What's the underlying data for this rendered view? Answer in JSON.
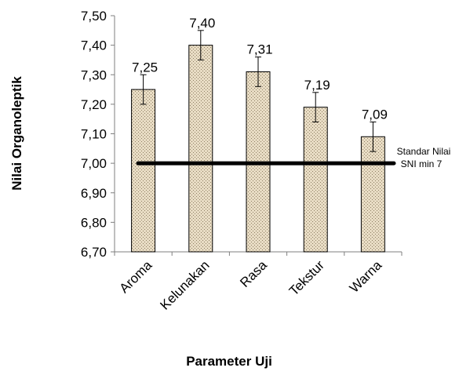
{
  "chart_data": {
    "type": "bar",
    "xlabel": "Parameter Uji",
    "ylabel": "Nilai Organoleptik",
    "ylim": [
      6.7,
      7.5
    ],
    "yticks": [
      "6,70",
      "6,80",
      "6,90",
      "7,00",
      "7,10",
      "7,20",
      "7,30",
      "7,40",
      "7,50"
    ],
    "ytick_values": [
      6.7,
      6.8,
      6.9,
      7.0,
      7.1,
      7.2,
      7.3,
      7.4,
      7.5
    ],
    "categories": [
      "Aroma",
      "Kelunakan",
      "Rasa",
      "Tekstur",
      "Warna"
    ],
    "values": [
      7.25,
      7.4,
      7.31,
      7.19,
      7.09
    ],
    "data_labels": [
      "7,25",
      "7,40",
      "7,31",
      "7,19",
      "7,09"
    ],
    "error_bars": [
      0.05,
      0.05,
      0.05,
      0.05,
      0.05
    ],
    "reference_line": {
      "value": 7.0,
      "label_line1": "Standar Nilai",
      "label_line2": "SNI min 7"
    },
    "bar_color": "#e8dcc4",
    "bar_pattern_color": "#9a8c70",
    "grid": false
  }
}
